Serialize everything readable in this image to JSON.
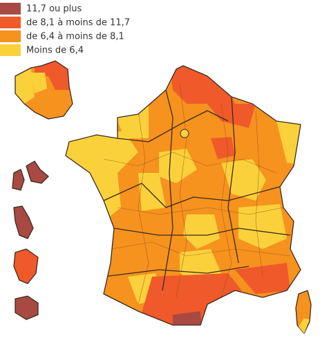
{
  "legend": [
    {
      "label": "11,7 ou plus",
      "color": "#a84a43"
    },
    {
      "label": "de 8,1 à moins de 11,7",
      "color": "#f0592a"
    },
    {
      "label": "de 6,4 à moins de 8,1",
      "color": "#f6921e"
    },
    {
      "label": "Moins de 6,4",
      "color": "#fbd13b"
    }
  ]
}
